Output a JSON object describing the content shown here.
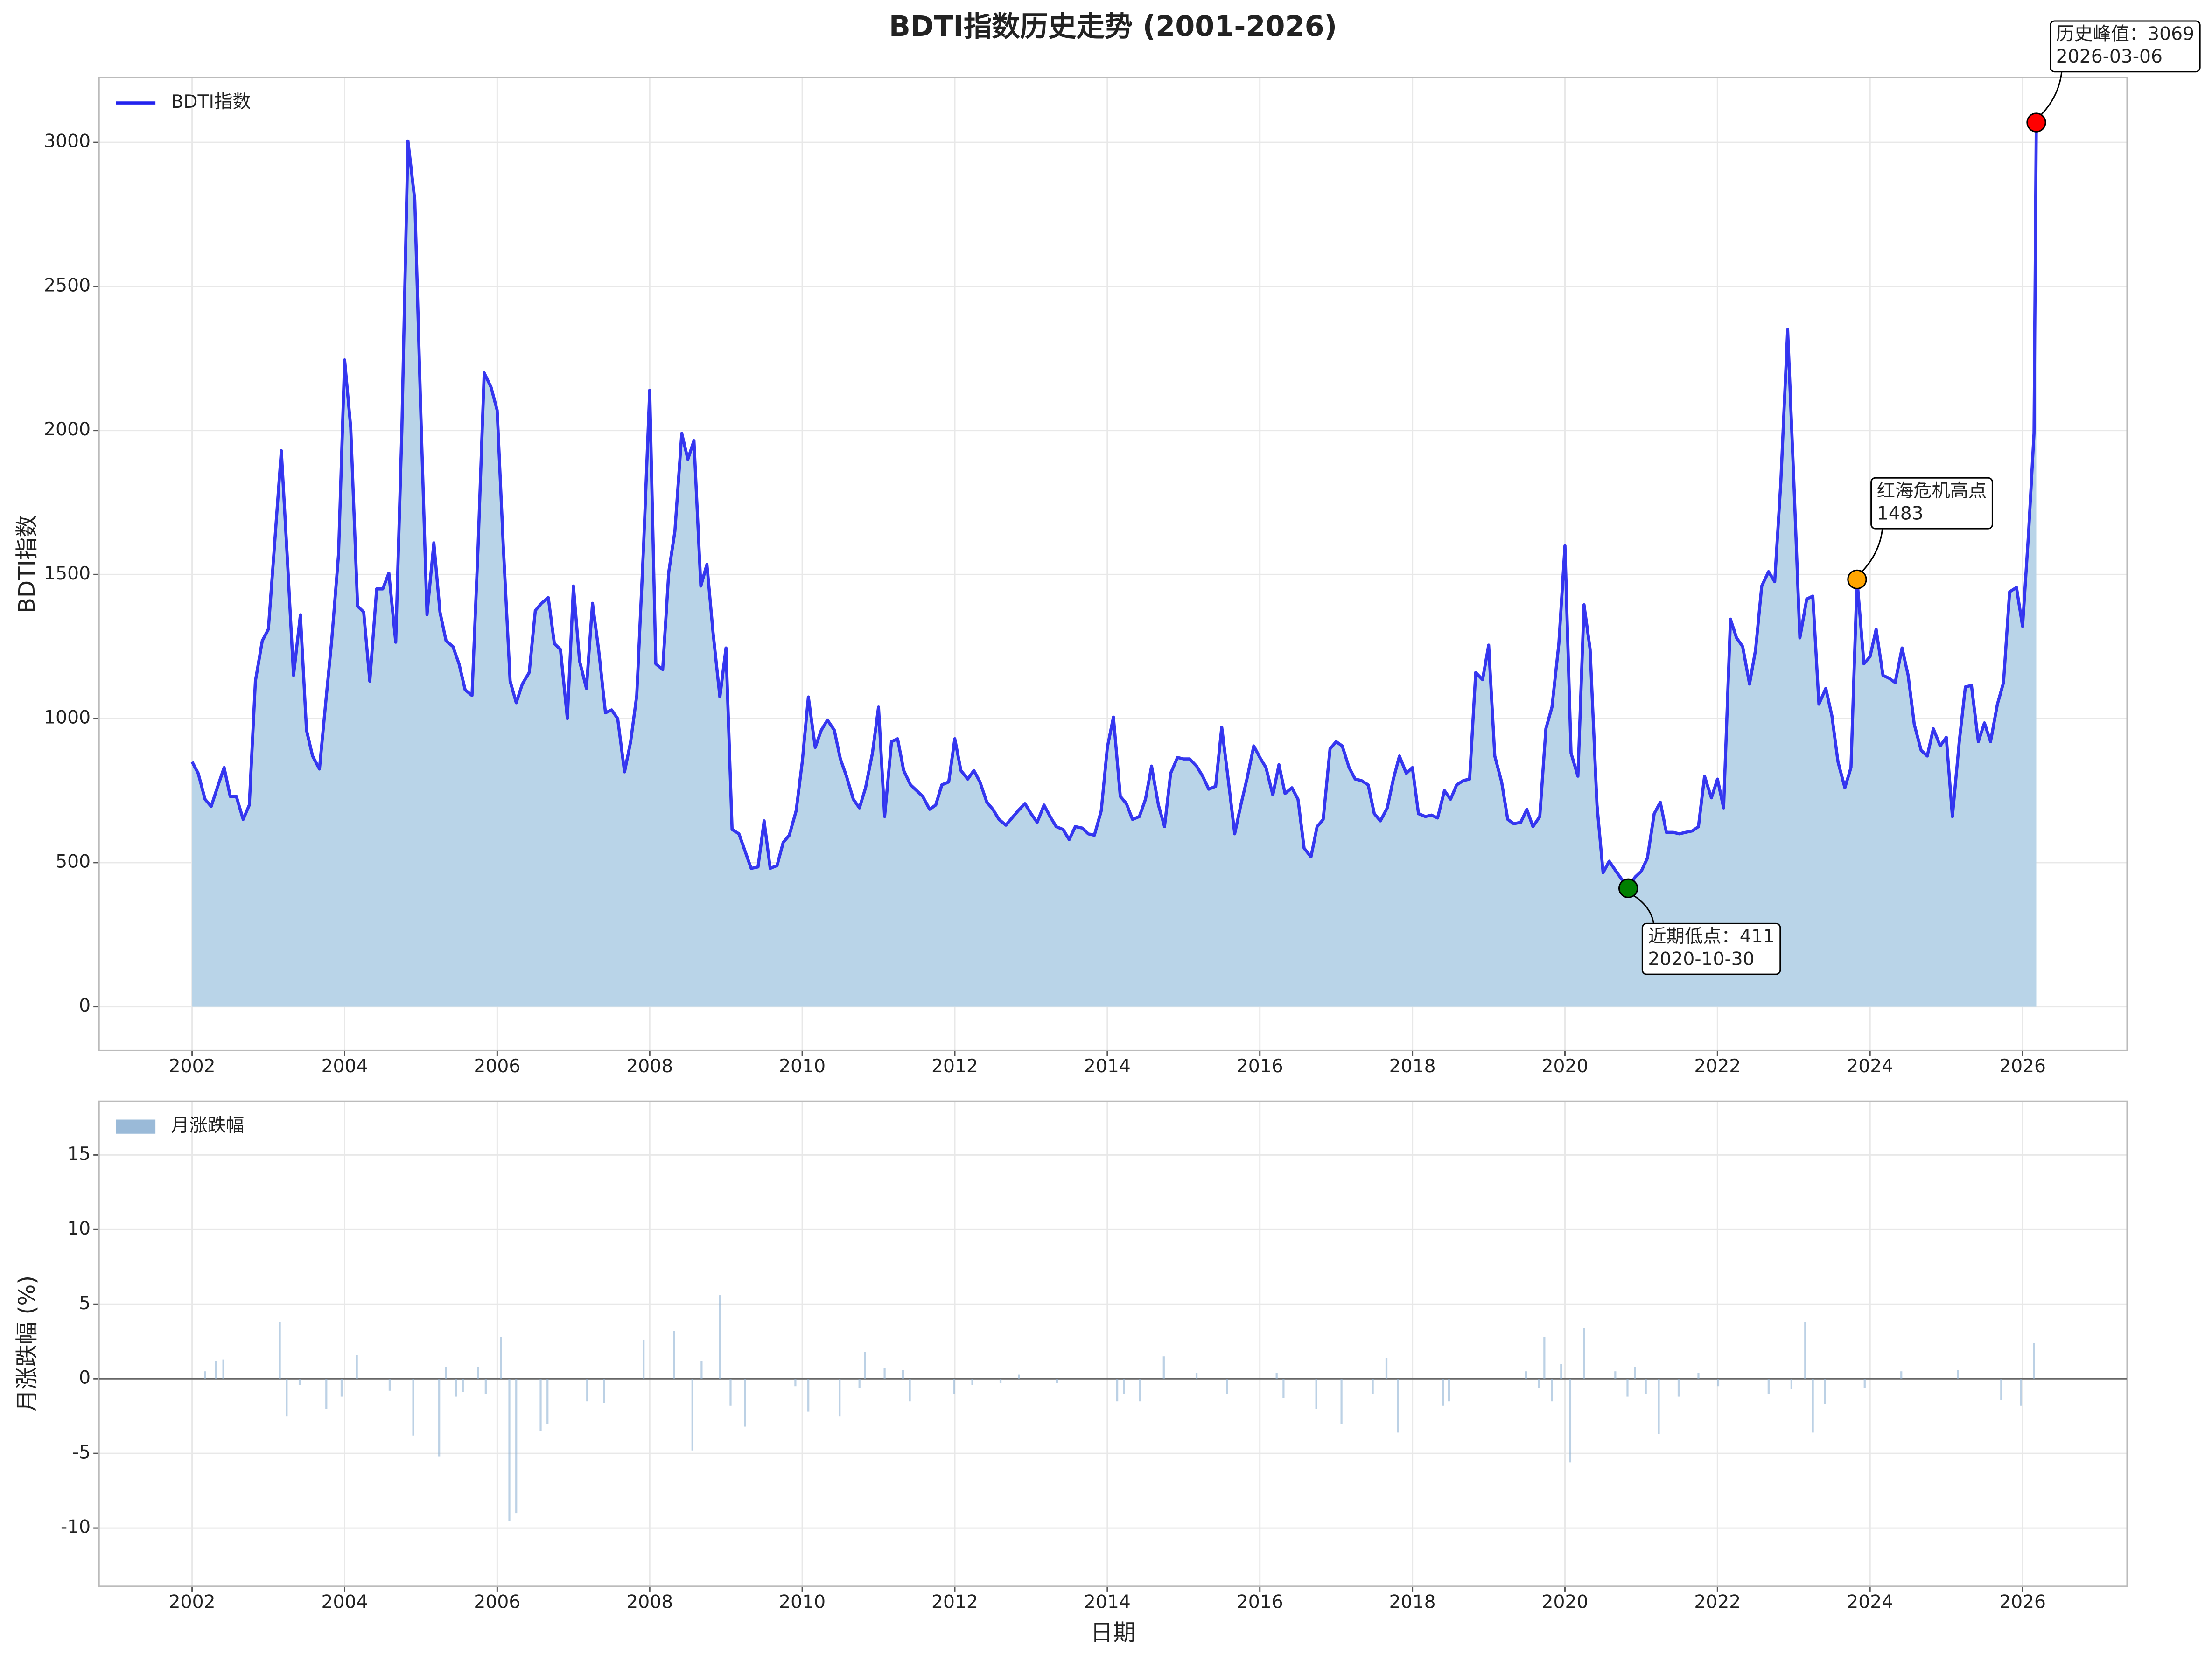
{
  "chart_data": [
    {
      "type": "line",
      "title": "BDTI指数历史走势 (2001-2026)",
      "ylabel": "BDTI指数",
      "xlim": [
        2000.78,
        2027.37
      ],
      "xticks": [
        2002,
        2004,
        2006,
        2008,
        2010,
        2012,
        2014,
        2016,
        2018,
        2020,
        2022,
        2024,
        2026
      ],
      "ylim": [
        -152,
        3225
      ],
      "yticks": [
        0,
        500,
        1000,
        1500,
        2000,
        2500,
        3000
      ],
      "grid": true,
      "legend": "upper-left",
      "x": [
        2002.0,
        2002.08,
        2002.17,
        2002.25,
        2002.33,
        2002.42,
        2002.5,
        2002.58,
        2002.67,
        2002.75,
        2002.83,
        2002.92,
        2003.0,
        2003.08,
        2003.17,
        2003.25,
        2003.33,
        2003.42,
        2003.5,
        2003.58,
        2003.67,
        2003.75,
        2003.83,
        2003.92,
        2004.0,
        2004.08,
        2004.17,
        2004.25,
        2004.33,
        2004.42,
        2004.5,
        2004.58,
        2004.67,
        2004.75,
        2004.83,
        2004.92,
        2005.0,
        2005.08,
        2005.17,
        2005.25,
        2005.33,
        2005.42,
        2005.5,
        2005.58,
        2005.67,
        2005.75,
        2005.83,
        2005.92,
        2006.0,
        2006.08,
        2006.17,
        2006.25,
        2006.33,
        2006.42,
        2006.5,
        2006.58,
        2006.67,
        2006.75,
        2006.83,
        2006.92,
        2007.0,
        2007.08,
        2007.17,
        2007.25,
        2007.33,
        2007.42,
        2007.5,
        2007.58,
        2007.67,
        2007.75,
        2007.83,
        2007.92,
        2008.0,
        2008.08,
        2008.17,
        2008.25,
        2008.33,
        2008.42,
        2008.5,
        2008.58,
        2008.67,
        2008.75,
        2008.83,
        2008.92,
        2009.0,
        2009.08,
        2009.17,
        2009.25,
        2009.33,
        2009.42,
        2009.5,
        2009.58,
        2009.67,
        2009.75,
        2009.83,
        2009.92,
        2010.0,
        2010.08,
        2010.17,
        2010.25,
        2010.33,
        2010.42,
        2010.5,
        2010.58,
        2010.67,
        2010.75,
        2010.83,
        2010.92,
        2011.0,
        2011.08,
        2011.17,
        2011.25,
        2011.33,
        2011.42,
        2011.5,
        2011.58,
        2011.67,
        2011.75,
        2011.83,
        2011.92,
        2012.0,
        2012.08,
        2012.17,
        2012.25,
        2012.33,
        2012.42,
        2012.5,
        2012.58,
        2012.67,
        2012.75,
        2012.83,
        2012.92,
        2013.0,
        2013.08,
        2013.17,
        2013.25,
        2013.33,
        2013.42,
        2013.5,
        2013.58,
        2013.67,
        2013.75,
        2013.83,
        2013.92,
        2014.0,
        2014.08,
        2014.17,
        2014.25,
        2014.33,
        2014.42,
        2014.5,
        2014.58,
        2014.67,
        2014.75,
        2014.83,
        2014.92,
        2015.0,
        2015.08,
        2015.17,
        2015.25,
        2015.33,
        2015.42,
        2015.5,
        2015.58,
        2015.67,
        2015.75,
        2015.83,
        2015.92,
        2016.0,
        2016.08,
        2016.17,
        2016.25,
        2016.33,
        2016.42,
        2016.5,
        2016.58,
        2016.67,
        2016.75,
        2016.83,
        2016.92,
        2017.0,
        2017.08,
        2017.17,
        2017.25,
        2017.33,
        2017.42,
        2017.5,
        2017.58,
        2017.67,
        2017.75,
        2017.83,
        2017.92,
        2018.0,
        2018.08,
        2018.17,
        2018.25,
        2018.33,
        2018.42,
        2018.5,
        2018.58,
        2018.67,
        2018.75,
        2018.83,
        2018.92,
        2019.0,
        2019.08,
        2019.17,
        2019.25,
        2019.33,
        2019.42,
        2019.5,
        2019.58,
        2019.67,
        2019.75,
        2019.83,
        2019.92,
        2020.0,
        2020.08,
        2020.17,
        2020.25,
        2020.33,
        2020.42,
        2020.5,
        2020.58,
        2020.67,
        2020.75,
        2020.83,
        2020.92,
        2021.0,
        2021.08,
        2021.17,
        2021.25,
        2021.33,
        2021.42,
        2021.5,
        2021.58,
        2021.67,
        2021.75,
        2021.83,
        2021.92,
        2022.0,
        2022.08,
        2022.17,
        2022.25,
        2022.33,
        2022.42,
        2022.5,
        2022.58,
        2022.67,
        2022.75,
        2022.83,
        2022.92,
        2023.0,
        2023.08,
        2023.17,
        2023.25,
        2023.33,
        2023.42,
        2023.5,
        2023.58,
        2023.67,
        2023.75,
        2023.83,
        2023.92,
        2024.0,
        2024.08,
        2024.17,
        2024.25,
        2024.33,
        2024.42,
        2024.5,
        2024.58,
        2024.67,
        2024.75,
        2024.83,
        2024.92,
        2025.0,
        2025.08,
        2025.17,
        2025.25,
        2025.33,
        2025.42,
        2025.5,
        2025.58,
        2025.67,
        2025.75,
        2025.83,
        2025.92,
        2026.0,
        2026.08,
        2026.15,
        2026.18
      ],
      "series": [
        {
          "name": "BDTI指数",
          "color": "#2222ee",
          "fill": "#b9d4e8",
          "values": [
            850,
            810,
            720,
            695,
            760,
            830,
            730,
            730,
            650,
            700,
            1130,
            1270,
            1310,
            1600,
            1930,
            1550,
            1150,
            1360,
            960,
            870,
            825,
            1050,
            1270,
            1570,
            2245,
            2010,
            1390,
            1370,
            1130,
            1450,
            1450,
            1505,
            1265,
            2000,
            3005,
            2800,
            2050,
            1360,
            1610,
            1370,
            1270,
            1250,
            1190,
            1100,
            1080,
            1600,
            2200,
            2150,
            2070,
            1600,
            1130,
            1055,
            1120,
            1160,
            1375,
            1400,
            1420,
            1260,
            1240,
            1000,
            1460,
            1200,
            1105,
            1400,
            1240,
            1020,
            1030,
            1000,
            815,
            920,
            1080,
            1600,
            2140,
            1190,
            1170,
            1510,
            1650,
            1990,
            1900,
            1965,
            1460,
            1535,
            1300,
            1075,
            1245,
            615,
            600,
            540,
            480,
            485,
            645,
            480,
            490,
            570,
            595,
            680,
            850,
            1075,
            900,
            960,
            995,
            960,
            860,
            800,
            720,
            690,
            760,
            880,
            1040,
            660,
            920,
            930,
            820,
            770,
            750,
            730,
            685,
            700,
            770,
            780,
            930,
            820,
            790,
            820,
            780,
            710,
            685,
            650,
            630,
            655,
            680,
            705,
            670,
            640,
            700,
            660,
            625,
            615,
            580,
            625,
            620,
            600,
            595,
            680,
            900,
            1005,
            730,
            705,
            650,
            660,
            720,
            835,
            700,
            625,
            810,
            865,
            860,
            860,
            835,
            800,
            755,
            765,
            970,
            800,
            600,
            700,
            790,
            905,
            865,
            830,
            735,
            840,
            740,
            760,
            720,
            550,
            520,
            625,
            650,
            895,
            920,
            905,
            830,
            790,
            785,
            770,
            670,
            645,
            690,
            790,
            870,
            810,
            830,
            670,
            660,
            665,
            655,
            750,
            720,
            770,
            785,
            790,
            1160,
            1135,
            1255,
            870,
            780,
            650,
            635,
            640,
            685,
            625,
            660,
            965,
            1040,
            1260,
            1600,
            880,
            800,
            1395,
            1240,
            700,
            465,
            505,
            470,
            440,
            411,
            450,
            470,
            515,
            670,
            710,
            605,
            605,
            600,
            605,
            610,
            625,
            800,
            725,
            790,
            690,
            1345,
            1280,
            1250,
            1120,
            1240,
            1460,
            1510,
            1475,
            1820,
            2350,
            1830,
            1280,
            1415,
            1425,
            1050,
            1105,
            1010,
            850,
            760,
            830,
            1483,
            1190,
            1215,
            1310,
            1150,
            1140,
            1125,
            1245,
            1150,
            980,
            890,
            870,
            965,
            905,
            935,
            660,
            920,
            1110,
            1115,
            920,
            985,
            920,
            1050,
            1125,
            1440,
            1455,
            1320,
            1650,
            1990,
            3069
          ]
        }
      ],
      "annotations": [
        {
          "lines": [
            "历史峰值：3069",
            "2026-03-06"
          ],
          "x": 2026.18,
          "y": 3069,
          "color": "#ff0000"
        },
        {
          "lines": [
            "红海危机高点",
            "1483"
          ],
          "x": 2023.83,
          "y": 1483,
          "color": "#ffa500"
        },
        {
          "lines": [
            "近期低点：411",
            "2020-10-30"
          ],
          "x": 2020.83,
          "y": 411,
          "color": "#008000"
        }
      ]
    },
    {
      "type": "bar",
      "xlabel": "日期",
      "ylabel": "月涨跌幅 (%)",
      "xlim": [
        2000.78,
        2027.37
      ],
      "xticks": [
        2002,
        2004,
        2006,
        2008,
        2010,
        2012,
        2014,
        2016,
        2018,
        2020,
        2022,
        2024,
        2026
      ],
      "ylim": [
        -13.9,
        18.6
      ],
      "yticks": [
        -10,
        -5,
        0,
        5,
        10,
        15
      ],
      "grid": true,
      "legend": "upper-left",
      "x": [
        2002.17,
        2002.31,
        2002.41,
        2003.15,
        2003.24,
        2003.41,
        2003.76,
        2003.96,
        2004.16,
        2004.59,
        2004.9,
        2005.24,
        2005.33,
        2005.46,
        2005.55,
        2005.75,
        2005.85,
        2006.05,
        2006.16,
        2006.25,
        2006.57,
        2006.66,
        2007.18,
        2007.4,
        2007.92,
        2008.32,
        2008.56,
        2008.68,
        2008.92,
        2009.06,
        2009.25,
        2009.91,
        2010.08,
        2010.49,
        2010.75,
        2010.82,
        2011.08,
        2011.32,
        2011.41,
        2011.99,
        2012.23,
        2012.6,
        2012.84,
        2013.34,
        2014.13,
        2014.22,
        2014.43,
        2014.74,
        2015.17,
        2015.57,
        2016.22,
        2016.31,
        2016.74,
        2017.07,
        2017.48,
        2017.66,
        2017.81,
        2018.4,
        2018.48,
        2019.49,
        2019.66,
        2019.73,
        2019.83,
        2019.95,
        2020.07,
        2020.25,
        2020.66,
        2020.82,
        2020.92,
        2021.06,
        2021.23,
        2021.49,
        2021.75,
        2022.01,
        2022.67,
        2022.97,
        2023.15,
        2023.25,
        2023.41,
        2023.93,
        2024.41,
        2025.15,
        2025.72,
        2025.98,
        2026.15
      ],
      "series": [
        {
          "name": "月涨跌幅",
          "color": "#8fb2d4",
          "values": [
            0.5,
            1.2,
            1.3,
            3.8,
            -2.5,
            -0.4,
            -2.0,
            -1.2,
            1.6,
            -0.8,
            -3.8,
            -5.2,
            0.8,
            -1.2,
            -0.9,
            0.8,
            -1.0,
            2.8,
            -9.5,
            -9.0,
            -3.5,
            -3.0,
            -1.5,
            -1.6,
            2.6,
            3.2,
            -4.8,
            1.2,
            5.6,
            -1.8,
            -3.2,
            -0.5,
            -2.2,
            -2.5,
            -0.6,
            1.8,
            0.7,
            0.6,
            -1.5,
            -1.0,
            -0.4,
            -0.3,
            0.3,
            -0.3,
            -1.5,
            -1.0,
            -1.5,
            1.5,
            0.4,
            -1.0,
            0.4,
            -1.3,
            -2.0,
            -3.0,
            -1.0,
            1.4,
            -3.6,
            -1.8,
            -1.5,
            0.5,
            -0.6,
            2.8,
            -1.5,
            1.0,
            -5.6,
            3.4,
            0.5,
            -1.2,
            0.8,
            -1.0,
            -3.7,
            -1.2,
            0.4,
            -0.5,
            -1.0,
            -0.7,
            3.8,
            -3.6,
            -1.7,
            -0.6,
            0.5,
            0.6,
            -1.4,
            -1.8,
            2.4
          ]
        }
      ]
    }
  ]
}
